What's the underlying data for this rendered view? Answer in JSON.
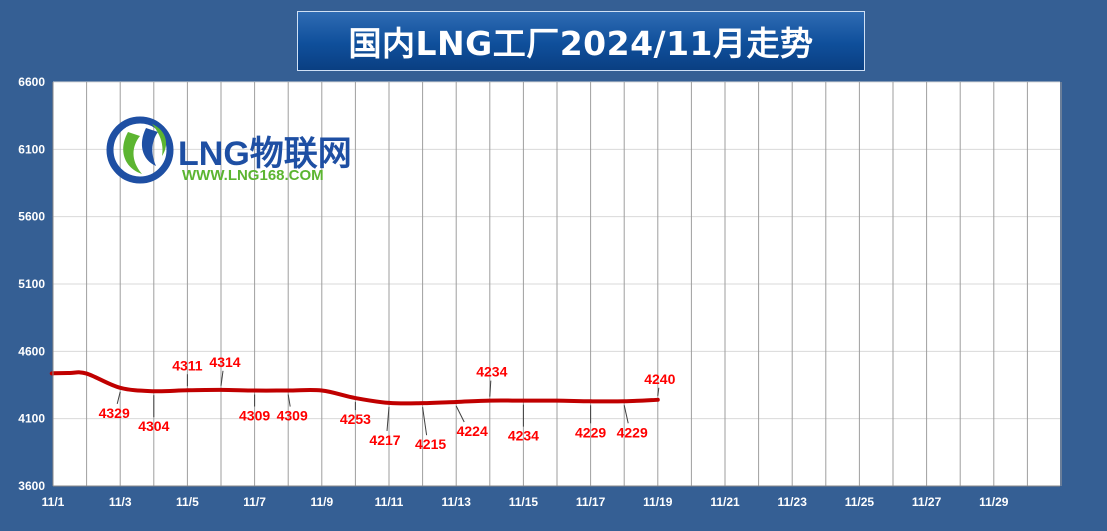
{
  "title": "国内LNG工厂2024/11月走势",
  "logo": {
    "brand": "LNG物联网",
    "url": "WWW.LNG168.COM"
  },
  "colors": {
    "background": "#355f94",
    "plot": "#ffffff",
    "line": "#c00000",
    "label": "#ff0000",
    "grid": "#bfbfbf"
  },
  "chart_data": {
    "type": "line",
    "title": "国内LNG工厂2024/11月走势",
    "ylim": [
      3600,
      6600
    ],
    "yticks": [
      "3600",
      "4100",
      "4600",
      "5100",
      "5600",
      "6100",
      "6600"
    ],
    "xlim": [
      1,
      31
    ],
    "xticks": [
      "11/1",
      "11/3",
      "11/5",
      "11/7",
      "11/9",
      "11/11",
      "11/13",
      "11/15",
      "11/17",
      "11/19",
      "11/21",
      "11/23",
      "11/25",
      "11/27",
      "11/29"
    ],
    "grid": true,
    "series": [
      {
        "x": [
          0.5,
          1,
          1.5,
          2,
          3,
          4,
          5,
          6,
          7,
          8,
          9,
          10,
          11,
          12,
          13,
          14,
          15,
          16,
          17,
          18,
          19
        ],
        "values": [
          4435,
          4437,
          4439,
          4435,
          4329,
          4304,
          4311,
          4314,
          4309,
          4309,
          4309,
          4253,
          4217,
          4215,
          4224,
          4234,
          4234,
          4234,
          4229,
          4229,
          4240
        ]
      }
    ],
    "data_labels": [
      {
        "x": 3,
        "text": "4329"
      },
      {
        "x": 4,
        "text": "4304"
      },
      {
        "x": 5,
        "text": "4311"
      },
      {
        "x": 6,
        "text": "4314"
      },
      {
        "x": 7,
        "text": "4309"
      },
      {
        "x": 8,
        "text": "4309"
      },
      {
        "x": 10,
        "text": "4253"
      },
      {
        "x": 11,
        "text": "4217"
      },
      {
        "x": 12,
        "text": "4215"
      },
      {
        "x": 13,
        "text": "4224"
      },
      {
        "x": 14,
        "text": "4234"
      },
      {
        "x": 15,
        "text": "4234"
      },
      {
        "x": 17,
        "text": "4229"
      },
      {
        "x": 18,
        "text": "4229"
      },
      {
        "x": 19,
        "text": "4240"
      }
    ]
  }
}
